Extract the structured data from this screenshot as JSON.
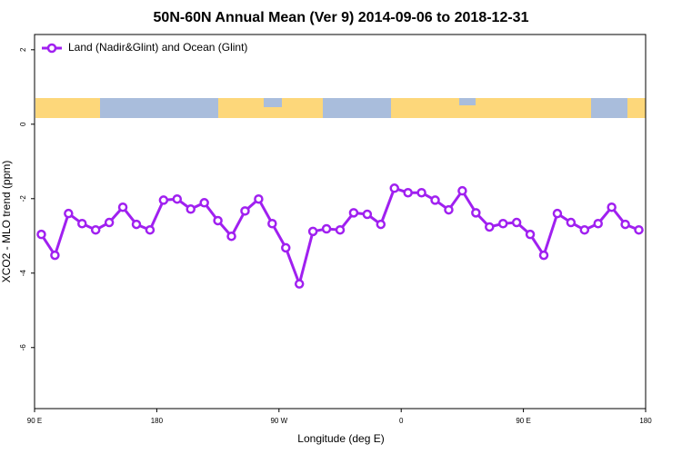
{
  "chart_data": {
    "type": "line",
    "title": "50N-60N Annual Mean (Ver 9)   2014-09-06 to 2018-12-31",
    "x_label": "Longitude (deg E)",
    "y_label": "XCO2 - MLO trend (ppm)",
    "x": [
      95,
      105,
      115,
      125,
      135,
      145,
      155,
      165,
      175,
      185,
      195,
      205,
      215,
      225,
      235,
      245,
      255,
      265,
      275,
      285,
      295,
      305,
      315,
      325,
      335,
      345,
      355,
      365,
      375,
      385,
      395,
      405,
      415,
      425,
      435,
      445,
      455,
      465,
      475,
      485,
      495,
      505,
      515,
      525,
      535
    ],
    "series": [
      {
        "name": "Land (Nadir&Glint) and Ocean (Glint)",
        "color": "#a020f0",
        "values": [
          -2.96,
          -3.52,
          -2.4,
          -2.67,
          -2.84,
          -2.64,
          -2.23,
          -2.69,
          -2.84,
          -2.04,
          -2.01,
          -2.28,
          -2.11,
          -2.59,
          -3.01,
          -2.33,
          -2.01,
          -2.67,
          -3.32,
          -4.29,
          -2.88,
          -2.81,
          -2.84,
          -2.38,
          -2.42,
          -2.69,
          -1.72,
          -1.84,
          -1.84,
          -2.04,
          -2.3,
          -1.79,
          -2.38,
          -2.76,
          -2.67,
          -2.64,
          -2.96,
          -3.52,
          -2.4,
          -2.64,
          -2.84,
          -2.67,
          -2.23,
          -2.69,
          -2.84
        ]
      }
    ],
    "xlim": [
      90,
      540
    ],
    "xticks": [
      {
        "value": 90,
        "label": "90 E"
      },
      180,
      {
        "value": 270,
        "label": "90 W"
      },
      {
        "value": 360,
        "label": "0"
      },
      {
        "value": 450,
        "label": "90 E"
      },
      {
        "value": 540,
        "label": "180"
      }
    ],
    "ylim": [
      -7.64,
      2.41
    ],
    "yticks": [
      2,
      0,
      -2,
      -4,
      -6
    ],
    "legend": "top-left"
  }
}
